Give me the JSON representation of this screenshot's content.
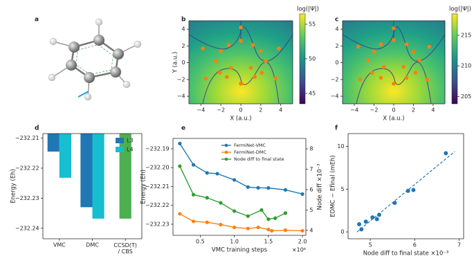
{
  "chart_data": [
    {
      "type": "molecule",
      "label": "a"
    },
    {
      "type": "heatmap",
      "label": "b",
      "xlabel": "X (a.u.)",
      "ylabel": "Y (a.u.)",
      "xlim": [
        -5.2,
        5.2
      ],
      "ylim": [
        -4.9,
        5.0
      ],
      "xticks": [
        {
          "value": -4,
          "label": "−4"
        },
        {
          "value": -2,
          "label": "−2"
        },
        0,
        2,
        4
      ],
      "yticks": [
        {
          "value": -4,
          "label": "−4"
        },
        {
          "value": -2,
          "label": "−2"
        },
        0,
        2,
        4
      ],
      "colorbar_label": "log(|Ψ|)",
      "clim": [
        43.5,
        56.5
      ],
      "cticks": [
        45,
        50,
        55
      ],
      "point_color": "#ff7f0e",
      "points_x": [
        0,
        0,
        -1.2,
        1.2,
        -2.0,
        2.0,
        -3.8,
        3.8,
        -2.5,
        2.5,
        -1.0,
        1.0,
        -2.1,
        2.1,
        -3.5,
        3.5,
        -1.4,
        1.4,
        0
      ],
      "points_y": [
        4.2,
        2.6,
        2.1,
        2.1,
        1.4,
        1.4,
        1.7,
        1.7,
        0.2,
        0.2,
        -0.6,
        -0.6,
        -1.2,
        -1.2,
        -1.9,
        -1.9,
        -1.7,
        -1.7,
        -2.5
      ]
    },
    {
      "type": "heatmap",
      "label": "c",
      "xlabel": "X (a.u.)",
      "xlim": [
        -5.2,
        5.2
      ],
      "ylim": [
        -4.9,
        5.0
      ],
      "xticks": [
        {
          "value": -4,
          "label": "−4"
        },
        {
          "value": -2,
          "label": "−2"
        },
        0,
        2,
        4
      ],
      "yticks": [
        {
          "value": -4,
          "label": "−4"
        },
        {
          "value": -2,
          "label": "−2"
        },
        0,
        2,
        4
      ],
      "colorbar_label": "log(|Ψ|)",
      "clim": [
        203.8,
        218.5
      ],
      "cticks": [
        205,
        210,
        215
      ],
      "point_color": "#ff7f0e",
      "points_x": [
        0,
        0,
        -1.3,
        1.3,
        -2.0,
        2.0,
        -3.6,
        3.6,
        -2.6,
        2.6,
        -1.0,
        1.0,
        -2.2,
        2.2,
        -3.4,
        3.4,
        -1.3,
        1.3,
        0
      ],
      "points_y": [
        4.1,
        2.7,
        2.2,
        2.2,
        1.3,
        1.3,
        1.9,
        1.9,
        0.3,
        0.3,
        -0.5,
        -0.5,
        -1.2,
        -1.2,
        -2.0,
        -2.0,
        -1.8,
        -1.8,
        -2.5
      ]
    },
    {
      "type": "bar",
      "label": "d",
      "ylabel": "Energy (Eh)",
      "categories": [
        "VMC",
        "DMC",
        "CCSD(T)\n/ CBS"
      ],
      "series": [
        {
          "name": "L3",
          "color": "#1f77b4",
          "values": [
            -232.2145,
            -232.233,
            null
          ]
        },
        {
          "name": "L4",
          "color": "#17becf",
          "values": [
            -232.2232,
            -232.2368,
            null
          ]
        },
        {
          "color": "#4caf50",
          "values": [
            null,
            null,
            -232.2368
          ]
        }
      ],
      "ylim": [
        -232.2435,
        -232.2085
      ],
      "yticks": [
        {
          "value": -232.24,
          "label": "−232.24"
        },
        {
          "value": -232.23,
          "label": "−232.23"
        },
        {
          "value": -232.22,
          "label": "−232.22"
        },
        {
          "value": -232.21,
          "label": "−232.21"
        }
      ],
      "legend": "upper right"
    },
    {
      "type": "line",
      "label": "e",
      "xlabel": "VMC training steps",
      "x_offset_label": "×10⁶",
      "ylabel": "Energy (Eh)",
      "y2label": "Node diff ×10⁻³",
      "xlim": [
        0.1,
        2.05
      ],
      "xticks": [
        0.5,
        {
          "value": 1,
          "label": "1.0"
        },
        1.5,
        {
          "value": 2,
          "label": "2.0"
        }
      ],
      "ylim": [
        -232.2359,
        -232.1845
      ],
      "yticks": [
        {
          "value": -232.23,
          "label": "−232.23"
        },
        {
          "value": -232.22,
          "label": "−232.22"
        },
        {
          "value": -232.21,
          "label": "−232.21"
        },
        {
          "value": -232.2,
          "label": "−232.20"
        },
        {
          "value": -232.19,
          "label": "−232.19"
        }
      ],
      "y2lim": [
        3.76,
        8.51
      ],
      "y2ticks": [
        4,
        5,
        6,
        7,
        8
      ],
      "series": [
        {
          "name": "FermiNet-VMC",
          "color": "#1f77b4",
          "x": [
            0.2,
            0.4,
            0.6,
            0.75,
            1.0,
            1.2,
            1.35,
            1.5,
            1.75,
            2.0
          ],
          "values": [
            -232.1872,
            -232.1985,
            -232.2028,
            -232.2032,
            -232.2065,
            -232.2103,
            -232.2107,
            -232.2108,
            -232.2118,
            -232.214
          ]
        },
        {
          "name": "FermiNet-DMC",
          "color": "#ff7f0e",
          "x": [
            0.2,
            0.4,
            0.6,
            0.8,
            1.0,
            1.2,
            1.35,
            1.5,
            1.55,
            1.75,
            2.0
          ],
          "values": [
            -232.2245,
            -232.2285,
            -232.229,
            -232.2302,
            -232.2317,
            -232.2323,
            -232.2317,
            -232.2328,
            -232.2335,
            -232.2332,
            -232.2335
          ]
        },
        {
          "name": "Node diff to final state",
          "color": "#2ca02c",
          "axis": "y2",
          "x": [
            0.2,
            0.4,
            0.6,
            0.8,
            1.0,
            1.2,
            1.4,
            1.5,
            1.6,
            1.75
          ],
          "values": [
            7.15,
            5.75,
            5.6,
            5.35,
            4.95,
            4.7,
            5.0,
            4.55,
            4.6,
            4.85
          ]
        }
      ],
      "legend": "upper right"
    },
    {
      "type": "scatter",
      "label": "f",
      "xlabel": "Node diff to final state ×10⁻³",
      "ylabel": "EDMC − Efinal (mEh)",
      "xlim": [
        4.5,
        7.1
      ],
      "xticks": [
        5,
        6,
        7
      ],
      "ylim": [
        -0.8,
        11.5
      ],
      "yticks": [
        0,
        5,
        10
      ],
      "color": "#1f77b4",
      "x": [
        4.75,
        4.8,
        4.9,
        5.05,
        5.15,
        5.2,
        5.55,
        5.85,
        5.97,
        6.7
      ],
      "values": [
        0.9,
        0.3,
        1.2,
        1.7,
        1.5,
        2.0,
        3.4,
        4.8,
        4.9,
        9.2
      ],
      "fit": {
        "x": [
          4.7,
          6.9
        ],
        "values": [
          0.0,
          9.4
        ]
      }
    }
  ]
}
